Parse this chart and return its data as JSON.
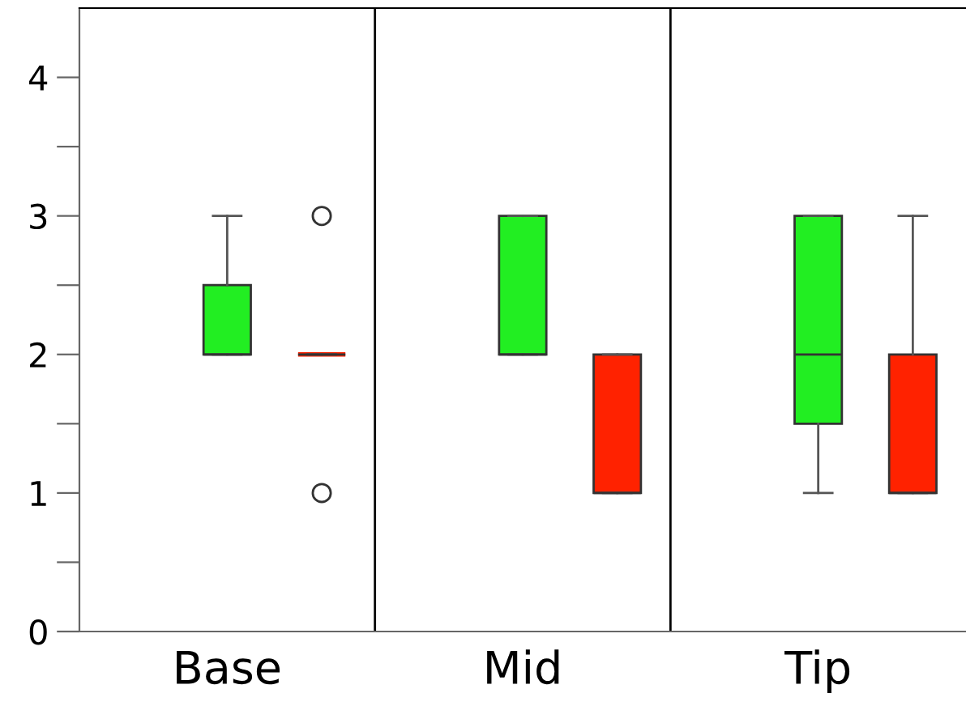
{
  "chart_data": {
    "type": "box",
    "categories": [
      "Base",
      "Mid",
      "Tip"
    ],
    "ylim": [
      0,
      4.5
    ],
    "yticks": [
      0,
      {
        "value": 0.5,
        "label": null
      },
      1,
      {
        "value": 1.5,
        "label": null
      },
      2,
      {
        "value": 2.5,
        "label": null
      },
      3,
      {
        "value": 3.5,
        "label": null
      },
      4
    ],
    "grid": "x",
    "series": [
      {
        "color": "#22ee22",
        "boxes": [
          {
            "low": 2,
            "q1": 2,
            "median": 2,
            "q3": 2.5,
            "high": 3
          },
          {
            "low": 2,
            "q1": 2,
            "median": 2,
            "q3": 3,
            "high": 3
          },
          {
            "low": 1,
            "q1": 1.5,
            "median": 2,
            "q3": 3,
            "high": 3
          }
        ]
      },
      {
        "color": "#ff2200",
        "boxes": [
          {
            "low": 2,
            "q1": 2,
            "median": 2,
            "q3": 2,
            "high": 2,
            "outliers": [
              1,
              3
            ]
          },
          {
            "low": 1,
            "q1": 1,
            "median": 1,
            "q3": 2,
            "high": 2
          },
          {
            "low": 1,
            "q1": 1,
            "median": 1,
            "q3": 2,
            "high": 3
          }
        ]
      }
    ]
  }
}
